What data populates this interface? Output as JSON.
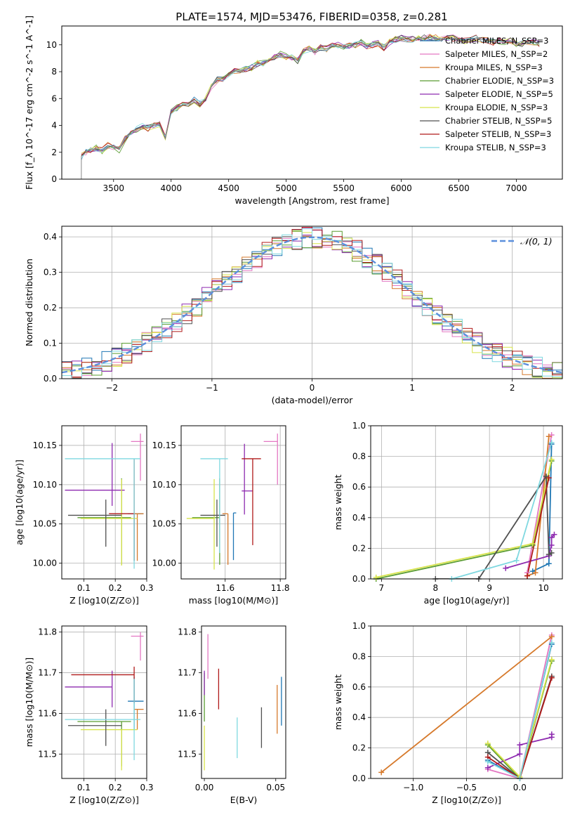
{
  "title": "PLATE=1574, MJD=53476, FIBERID=0358, z=0.281",
  "colors": [
    "#1f77b4",
    "#e377c2",
    "#d6792b",
    "#5a9c32",
    "#8e2bb0",
    "#d7e34a",
    "#505050",
    "#b01a1a",
    "#7fd8e0"
  ],
  "chart_data": [
    {
      "type": "line",
      "panel": "spectrum",
      "xlabel": "wavelength [Angstrom, rest frame]",
      "ylabel": "Flux [f_λ 10^-17 erg cm^-2 s^-1 A^-1]",
      "xlim": [
        3050,
        7400
      ],
      "ylim": [
        0,
        11.4
      ],
      "xticks": [
        3500,
        4000,
        4500,
        5000,
        5500,
        6000,
        6500,
        7000
      ],
      "yticks": [
        0,
        2,
        4,
        6,
        8,
        10
      ],
      "grid": false,
      "legend_position": "right",
      "observed_x": [
        3220,
        3260,
        3300,
        3350,
        3400,
        3450,
        3500,
        3550,
        3600,
        3650,
        3700,
        3750,
        3800,
        3850,
        3900,
        3950,
        4000,
        4050,
        4100,
        4150,
        4200,
        4250,
        4300,
        4350,
        4400,
        4450,
        4500,
        4550,
        4600,
        4650,
        4700,
        4750,
        4800,
        4850,
        4900,
        4950,
        5000,
        5050,
        5100,
        5150,
        5200,
        5250,
        5300,
        5350,
        5400,
        5450,
        5500,
        5550,
        5600,
        5650,
        5700,
        5750,
        5800,
        5850,
        5900,
        5950,
        6000,
        6050,
        6100,
        6150,
        6200,
        6250,
        6300,
        6350,
        6400,
        6450,
        6500,
        6550,
        6600,
        6650,
        6700,
        6750,
        6800,
        6850,
        6900,
        6950,
        7000,
        7050,
        7100,
        7150,
        7200
      ],
      "observed_y": [
        1.7,
        2.0,
        2.2,
        2.3,
        2.1,
        2.5,
        2.4,
        2.2,
        3.0,
        3.5,
        3.7,
        3.9,
        3.8,
        4.0,
        4.1,
        3.0,
        5.0,
        5.3,
        5.5,
        5.6,
        5.9,
        5.6,
        6.0,
        6.9,
        7.4,
        7.5,
        7.8,
        8.1,
        8.0,
        8.2,
        8.3,
        8.6,
        8.6,
        8.9,
        9.1,
        9.3,
        9.1,
        9.1,
        8.8,
        9.5,
        9.7,
        9.5,
        9.8,
        9.7,
        9.9,
        10.0,
        9.8,
        9.9,
        10.0,
        10.2,
        9.9,
        10.0,
        10.1,
        9.8,
        10.2,
        10.4,
        10.5,
        10.4,
        10.4,
        10.5,
        10.5,
        10.6,
        10.5,
        10.4,
        10.5,
        10.5,
        10.3,
        10.3,
        10.4,
        10.5,
        10.4,
        10.3,
        10.2,
        10.3,
        10.2,
        10.3,
        10.1,
        10.1,
        10.2,
        10.2,
        10.1
      ],
      "series": [
        {
          "name": "Chabrier MILES, N_SSP=3",
          "color": "#1f77b4"
        },
        {
          "name": "Salpeter MILES, N_SSP=2",
          "color": "#e377c2"
        },
        {
          "name": "Kroupa MILES, N_SSP=3",
          "color": "#d6792b"
        },
        {
          "name": "Chabrier ELODIE, N_SSP=3",
          "color": "#5a9c32"
        },
        {
          "name": "Salpeter ELODIE, N_SSP=5",
          "color": "#8e2bb0"
        },
        {
          "name": "Kroupa ELODIE, N_SSP=3",
          "color": "#d7e34a"
        },
        {
          "name": "Chabrier STELIB, N_SSP=5",
          "color": "#505050"
        },
        {
          "name": "Salpeter STELIB, N_SSP=3",
          "color": "#b01a1a"
        },
        {
          "name": "Kroupa STELIB, N_SSP=3",
          "color": "#7fd8e0"
        }
      ]
    },
    {
      "type": "line",
      "panel": "residuals",
      "xlabel": "(data-model)/error",
      "ylabel": "Normed distribution",
      "xlim": [
        -2.5,
        2.5
      ],
      "ylim": [
        0,
        0.43
      ],
      "xticks": [
        -2,
        -1,
        0,
        1,
        2
      ],
      "yticks": [
        0.0,
        0.1,
        0.2,
        0.3,
        0.4
      ],
      "grid": true,
      "legend_position": "top-right",
      "gaussian": {
        "name": "𝒩(0, 1)",
        "color": "#5b8fdc",
        "mean": 0,
        "sigma": 1
      },
      "bin_width": 0.1
    },
    {
      "type": "scatter",
      "panel": "age-vs-Z",
      "xlabel": "Z [log10(Z/Z⊙)]",
      "ylabel": "age  [log10(age/yr)]",
      "xlim": [
        0.03,
        0.3
      ],
      "ylim": [
        9.98,
        10.175
      ],
      "xticks": [
        0.1,
        0.2,
        0.3
      ],
      "yticks": [
        10.0,
        10.05,
        10.1,
        10.15
      ],
      "grid": true,
      "points": [
        {
          "x": 0.26,
          "y": 10.063,
          "xerr": [
            0.02,
            0.03
          ],
          "yerr": [
            0.06,
            0.0
          ],
          "color": "#1f77b4"
        },
        {
          "x": 0.28,
          "y": 10.155,
          "xerr": [
            0.03,
            0.01
          ],
          "yerr": [
            0.05,
            0.01
          ],
          "color": "#e377c2"
        },
        {
          "x": 0.27,
          "y": 10.063,
          "xerr": [
            0.01,
            0.02
          ],
          "yerr": [
            0.06,
            0.0
          ],
          "color": "#d6792b"
        },
        {
          "x": 0.22,
          "y": 10.058,
          "xerr": [
            0.14,
            0.03
          ],
          "yerr": [
            0.06,
            0.05
          ],
          "color": "#5a9c32"
        },
        {
          "x": 0.19,
          "y": 10.093,
          "xerr": [
            0.15,
            0.04
          ],
          "yerr": [
            0.02,
            0.06
          ],
          "color": "#8e2bb0"
        },
        {
          "x": 0.22,
          "y": 10.057,
          "xerr": [
            0.13,
            0.05
          ],
          "yerr": [
            0.06,
            0.05
          ],
          "color": "#d7e34a"
        },
        {
          "x": 0.17,
          "y": 10.061,
          "xerr": [
            0.12,
            0.05
          ],
          "yerr": [
            0.04,
            0.02
          ],
          "color": "#505050"
        },
        {
          "x": 0.26,
          "y": 10.063,
          "xerr": [
            0.08,
            0.0
          ],
          "yerr": [
            0.06,
            0.07
          ],
          "color": "#b01a1a"
        },
        {
          "x": 0.26,
          "y": 10.133,
          "xerr": [
            0.22,
            0.02
          ],
          "yerr": [
            0.14,
            0.0
          ],
          "color": "#7fd8e0"
        }
      ]
    },
    {
      "type": "scatter",
      "panel": "age-vs-mass",
      "xlabel": "mass [log10(M/M⊙)]",
      "ylabel": "",
      "xlim": [
        11.44,
        11.82
      ],
      "ylim": [
        9.98,
        10.175
      ],
      "xticks": [
        11.6,
        11.8
      ],
      "yticks": [
        10.0,
        10.05,
        10.1,
        10.15
      ],
      "grid": true,
      "points": [
        {
          "x": 11.63,
          "y": 10.064,
          "xerr": [
            0.0,
            0.01
          ],
          "yerr": [
            0.06,
            0.0
          ],
          "color": "#1f77b4"
        },
        {
          "x": 11.79,
          "y": 10.155,
          "xerr": [
            0.05,
            0.0
          ],
          "yerr": [
            0.055,
            0.01
          ],
          "color": "#e377c2"
        },
        {
          "x": 11.61,
          "y": 10.063,
          "xerr": [
            0.02,
            0.0
          ],
          "yerr": [
            0.065,
            0.0
          ],
          "color": "#d6792b"
        },
        {
          "x": 11.58,
          "y": 10.058,
          "xerr": [
            0.1,
            0.0
          ],
          "yerr": [
            0.06,
            0.05
          ],
          "color": "#5a9c32"
        },
        {
          "x": 11.67,
          "y": 10.092,
          "xerr": [
            0.01,
            0.03
          ],
          "yerr": [
            0.03,
            0.06
          ],
          "color": "#8e2bb0"
        },
        {
          "x": 11.56,
          "y": 10.057,
          "xerr": [
            0.1,
            0.0
          ],
          "yerr": [
            0.065,
            0.05
          ],
          "color": "#d7e34a"
        },
        {
          "x": 11.57,
          "y": 10.061,
          "xerr": [
            0.06,
            0.03
          ],
          "yerr": [
            0.04,
            0.02
          ],
          "color": "#505050"
        },
        {
          "x": 11.7,
          "y": 10.133,
          "xerr": [
            0.04,
            0.03
          ],
          "yerr": [
            0.11,
            0.0
          ],
          "color": "#b01a1a"
        },
        {
          "x": 11.58,
          "y": 10.133,
          "xerr": [
            0.07,
            0.03
          ],
          "yerr": [
            0.12,
            0.0
          ],
          "color": "#7fd8e0"
        }
      ]
    },
    {
      "type": "line",
      "panel": "mass-weight-vs-age",
      "xlabel": "age  [log10(age/yr)]",
      "ylabel": "mass weight",
      "xlim": [
        6.8,
        10.35
      ],
      "ylim": [
        0,
        1.0
      ],
      "xticks": [
        7,
        8,
        9,
        10
      ],
      "yticks": [
        0.0,
        0.2,
        0.4,
        0.6,
        0.8,
        1.0
      ],
      "grid": true,
      "series": [
        {
          "color": "#1f77b4",
          "x": [
            9.8,
            10.1,
            10.15
          ],
          "y": [
            0.05,
            0.1,
            0.88
          ]
        },
        {
          "color": "#e377c2",
          "x": [
            9.7,
            10.15
          ],
          "y": [
            0.04,
            0.94
          ]
        },
        {
          "color": "#d6792b",
          "x": [
            9.7,
            9.85,
            10.1
          ],
          "y": [
            0.02,
            0.04,
            0.93
          ]
        },
        {
          "color": "#5a9c32",
          "x": [
            6.9,
            9.8,
            10.15
          ],
          "y": [
            0.0,
            0.22,
            0.77
          ]
        },
        {
          "color": "#8e2bb0",
          "x": [
            9.3,
            10.1,
            10.15,
            10.15,
            10.2
          ],
          "y": [
            0.07,
            0.15,
            0.22,
            0.27,
            0.29
          ]
        },
        {
          "color": "#d7e34a",
          "x": [
            6.9,
            9.8,
            10.15
          ],
          "y": [
            0.01,
            0.23,
            0.78
          ]
        },
        {
          "color": "#505050",
          "x": [
            8.0,
            8.8,
            10.05,
            10.1,
            10.15
          ],
          "y": [
            0.0,
            0.0,
            0.67,
            0.16,
            0.17
          ]
        },
        {
          "color": "#b01a1a",
          "x": [
            9.7,
            10.1
          ],
          "y": [
            0.02,
            0.66
          ]
        },
        {
          "color": "#7fd8e0",
          "x": [
            8.3,
            9.5,
            10.15
          ],
          "y": [
            0.0,
            0.12,
            0.89
          ]
        }
      ]
    },
    {
      "type": "scatter",
      "panel": "mass-vs-Z",
      "xlabel": "Z [log10(Z/Z⊙)]",
      "ylabel": "mass [log10(M/M⊙)]",
      "xlim": [
        0.03,
        0.3
      ],
      "ylim": [
        11.44,
        11.815
      ],
      "xticks": [
        0.1,
        0.2,
        0.3
      ],
      "yticks": [
        11.5,
        11.6,
        11.7,
        11.8
      ],
      "grid": true,
      "points": [
        {
          "x": 0.26,
          "y": 11.63,
          "xerr": [
            0.02,
            0.03
          ],
          "yerr": [
            0.07,
            0.06
          ],
          "color": "#1f77b4"
        },
        {
          "x": 0.28,
          "y": 11.79,
          "xerr": [
            0.03,
            0.01
          ],
          "yerr": [
            0.06,
            0.01
          ],
          "color": "#e377c2"
        },
        {
          "x": 0.27,
          "y": 11.61,
          "xerr": [
            0.01,
            0.02
          ],
          "yerr": [
            0.05,
            0.0
          ],
          "color": "#d6792b"
        },
        {
          "x": 0.22,
          "y": 11.58,
          "xerr": [
            0.14,
            0.03
          ],
          "yerr": [
            0.11,
            0.0
          ],
          "color": "#5a9c32"
        },
        {
          "x": 0.19,
          "y": 11.665,
          "xerr": [
            0.15,
            0.0
          ],
          "yerr": [
            0.05,
            0.04
          ],
          "color": "#8e2bb0"
        },
        {
          "x": 0.22,
          "y": 11.56,
          "xerr": [
            0.13,
            0.05
          ],
          "yerr": [
            0.1,
            0.0
          ],
          "color": "#d7e34a"
        },
        {
          "x": 0.17,
          "y": 11.57,
          "xerr": [
            0.12,
            0.05
          ],
          "yerr": [
            0.05,
            0.04
          ],
          "color": "#505050"
        },
        {
          "x": 0.26,
          "y": 11.695,
          "xerr": [
            0.2,
            0.0
          ],
          "yerr": [
            0.07,
            0.02
          ],
          "color": "#b01a1a"
        },
        {
          "x": 0.26,
          "y": 11.585,
          "xerr": [
            0.22,
            0.02
          ],
          "yerr": [
            0.1,
            0.1
          ],
          "color": "#7fd8e0"
        }
      ]
    },
    {
      "type": "scatter",
      "panel": "mass-vs-EBV",
      "xlabel": "E(B-V)",
      "ylabel": "",
      "xlim": [
        -0.002,
        0.057
      ],
      "ylim": [
        11.44,
        11.815
      ],
      "xticks": [
        0.0,
        0.05
      ],
      "yticks": [
        11.5,
        11.6,
        11.7,
        11.8
      ],
      "grid": false,
      "points": [
        {
          "x": 0.054,
          "y": 11.63,
          "yerr": [
            0.06,
            0.06
          ],
          "color": "#1f77b4"
        },
        {
          "x": 0.0025,
          "y": 11.735,
          "yerr": [
            0.05,
            0.06
          ],
          "color": "#e377c2"
        },
        {
          "x": 0.051,
          "y": 11.61,
          "yerr": [
            0.06,
            0.06
          ],
          "color": "#d6792b"
        },
        {
          "x": 0.0,
          "y": 11.62,
          "yerr": [
            0.04,
            0.08
          ],
          "color": "#5a9c32"
        },
        {
          "x": 0.0,
          "y": 11.655,
          "yerr": [
            0.01,
            0.05
          ],
          "color": "#8e2bb0"
        },
        {
          "x": 0.0,
          "y": 11.51,
          "yerr": [
            0.05,
            0.06
          ],
          "color": "#d7e34a"
        },
        {
          "x": 0.04,
          "y": 11.565,
          "yerr": [
            0.05,
            0.05
          ],
          "color": "#505050"
        },
        {
          "x": 0.01,
          "y": 11.66,
          "yerr": [
            0.05,
            0.05
          ],
          "color": "#b01a1a"
        },
        {
          "x": 0.023,
          "y": 11.54,
          "yerr": [
            0.05,
            0.05
          ],
          "color": "#7fd8e0"
        }
      ]
    },
    {
      "type": "line",
      "panel": "mass-weight-vs-Z",
      "xlabel": "Z [log10(Z/Z⊙)]",
      "ylabel": "mass weight",
      "xlim": [
        -1.4,
        0.4
      ],
      "ylim": [
        0,
        1.0
      ],
      "xticks": [
        -1.0,
        -0.5,
        0.0
      ],
      "yticks": [
        0.0,
        0.2,
        0.4,
        0.6,
        0.8,
        1.0
      ],
      "grid": true,
      "series": [
        {
          "color": "#1f77b4",
          "x": [
            -0.3,
            0.0,
            0.3
          ],
          "y": [
            0.12,
            0.0,
            0.88
          ]
        },
        {
          "color": "#e377c2",
          "x": [
            -0.3,
            0.0,
            0.3
          ],
          "y": [
            0.06,
            0.0,
            0.94
          ]
        },
        {
          "color": "#d6792b",
          "x": [
            -1.3,
            0.3
          ],
          "y": [
            0.04,
            0.93
          ]
        },
        {
          "color": "#5a9c32",
          "x": [
            -0.3,
            0.0,
            0.3
          ],
          "y": [
            0.22,
            0.0,
            0.77
          ]
        },
        {
          "color": "#8e2bb0",
          "x": [
            -0.3,
            0.0,
            0.0,
            0.3,
            0.3
          ],
          "y": [
            0.07,
            0.16,
            0.22,
            0.27,
            0.29
          ]
        },
        {
          "color": "#d7e34a",
          "x": [
            -0.3,
            0.0,
            0.3
          ],
          "y": [
            0.23,
            0.01,
            0.78
          ]
        },
        {
          "color": "#505050",
          "x": [
            -0.3,
            0.0,
            0.3
          ],
          "y": [
            0.17,
            0.0,
            0.67
          ]
        },
        {
          "color": "#b01a1a",
          "x": [
            -0.3,
            0.0,
            0.3
          ],
          "y": [
            0.14,
            0.0,
            0.66
          ]
        },
        {
          "color": "#7fd8e0",
          "x": [
            -0.3,
            0.0,
            0.3
          ],
          "y": [
            0.11,
            0.0,
            0.89
          ]
        }
      ]
    }
  ]
}
